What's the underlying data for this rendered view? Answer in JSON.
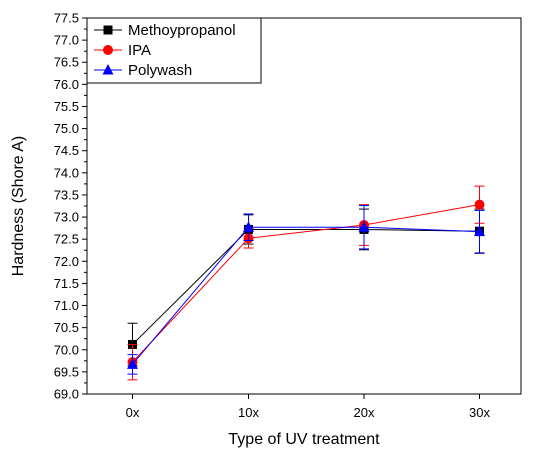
{
  "chart_data": {
    "type": "line",
    "title": "",
    "xlabel": "Type of UV treatment",
    "ylabel": "Hardness (Shore A)",
    "categories": [
      "0x",
      "10x",
      "20x",
      "30x"
    ],
    "ylim": [
      69.0,
      77.5
    ],
    "ytick_step": 0.5,
    "yticks": [
      "69.0",
      "69.5",
      "70.0",
      "70.5",
      "71.0",
      "71.5",
      "72.0",
      "72.5",
      "73.0",
      "73.5",
      "74.0",
      "74.5",
      "75.0",
      "75.5",
      "76.0",
      "76.5",
      "77.0",
      "77.5"
    ],
    "grid": false,
    "legend_position": "top-left",
    "series": [
      {
        "name": "Methoypropanol",
        "color": "#000000",
        "marker": "square",
        "values": [
          70.12,
          72.72,
          72.72,
          72.68
        ],
        "errors": [
          0.48,
          0.33,
          0.46,
          0.5
        ]
      },
      {
        "name": "IPA",
        "color": "#ff0000",
        "marker": "circle",
        "values": [
          69.72,
          72.52,
          72.82,
          73.28
        ],
        "errors": [
          0.4,
          0.22,
          0.46,
          0.42
        ]
      },
      {
        "name": "Polywash",
        "color": "#0000ff",
        "marker": "triangle",
        "values": [
          69.67,
          72.77,
          72.77,
          72.67
        ],
        "errors": [
          0.22,
          0.3,
          0.49,
          0.48
        ]
      }
    ]
  }
}
